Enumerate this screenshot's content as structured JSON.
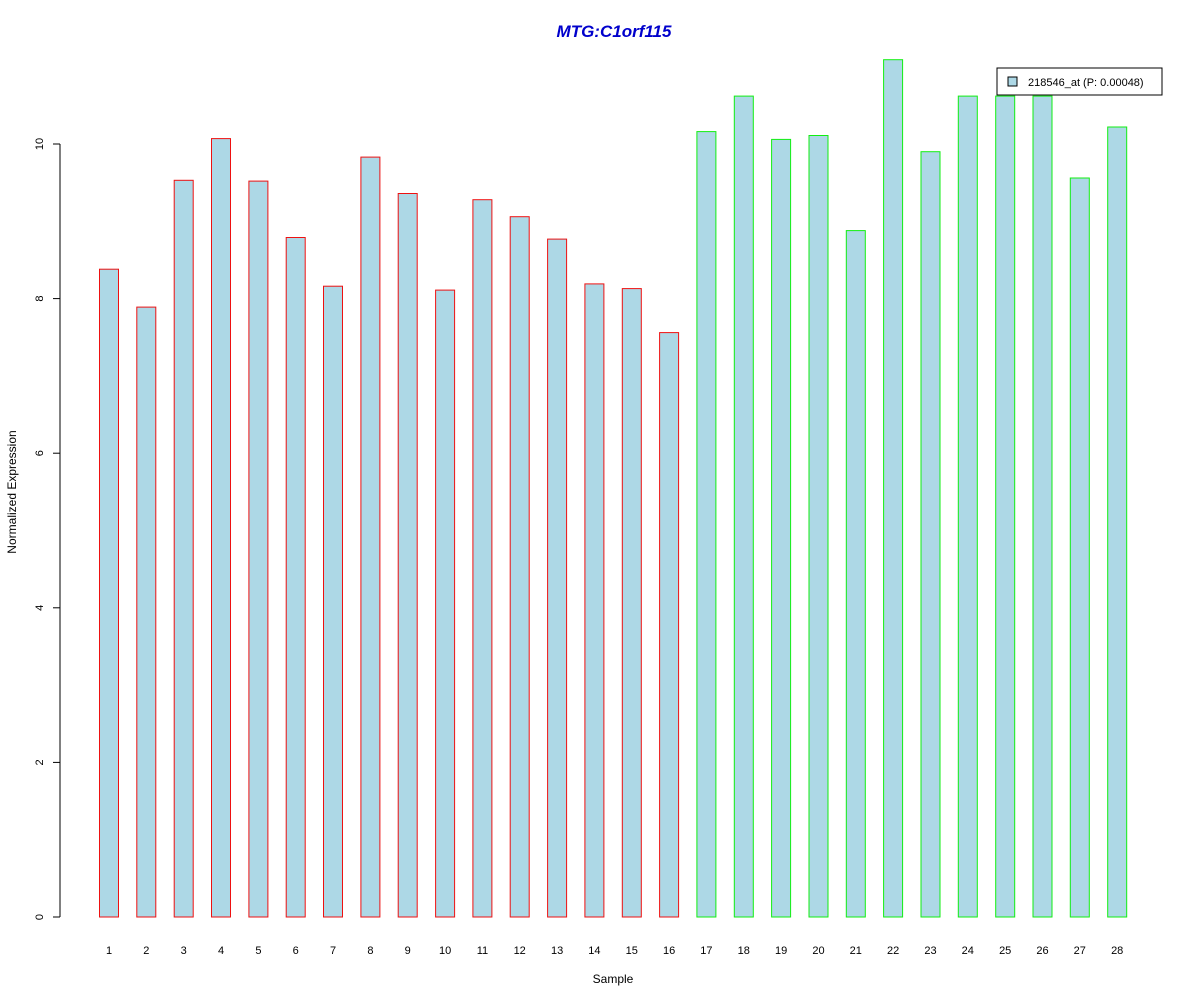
{
  "chart_data": {
    "type": "bar",
    "title": "MTG:C1orf115",
    "xlabel": "Sample",
    "ylabel": "Normalized Expression",
    "categories": [
      "1",
      "2",
      "3",
      "4",
      "5",
      "6",
      "7",
      "8",
      "9",
      "10",
      "11",
      "12",
      "13",
      "14",
      "15",
      "16",
      "17",
      "18",
      "19",
      "20",
      "21",
      "22",
      "23",
      "24",
      "25",
      "26",
      "27",
      "28"
    ],
    "series": [
      {
        "name": "218546_at (P: 0.00048)",
        "values": [
          8.38,
          7.89,
          9.53,
          10.07,
          9.52,
          8.79,
          8.16,
          9.83,
          9.36,
          8.11,
          9.28,
          9.06,
          8.77,
          8.19,
          8.13,
          7.56,
          10.16,
          10.62,
          10.06,
          10.11,
          8.88,
          11.09,
          9.9,
          10.62,
          10.62,
          10.62,
          9.56,
          10.22
        ]
      }
    ],
    "groups": [
      {
        "samples": [
          1,
          16
        ],
        "border_color": "#ee1111"
      },
      {
        "samples": [
          17,
          28
        ],
        "border_color": "#11ee11"
      }
    ],
    "ylim": [
      0,
      11.09
    ],
    "yticks": [
      0,
      2,
      4,
      6,
      8,
      10
    ],
    "grid": false,
    "legend_position": "top-right",
    "colors": {
      "bar_fill": "#add8e6",
      "title": "#0000cc",
      "axis": "#000000"
    }
  }
}
